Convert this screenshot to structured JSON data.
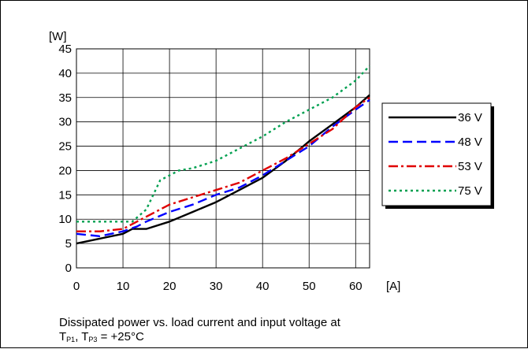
{
  "chart_data": {
    "type": "line",
    "xlabel": "[A]",
    "ylabel": "[W]",
    "xlim": [
      0,
      63
    ],
    "ylim": [
      0,
      45
    ],
    "x_ticks": [
      "0",
      "10",
      "20",
      "30",
      "40",
      "50",
      "60"
    ],
    "y_ticks": [
      "0",
      "5",
      "10",
      "15",
      "20",
      "25",
      "30",
      "35",
      "40",
      "45"
    ],
    "grid": true,
    "legend_position": "right",
    "series": [
      {
        "name": "36 V",
        "color": "#000000",
        "style": "solid",
        "x": [
          0,
          5,
          10,
          12,
          15,
          20,
          25,
          30,
          35,
          40,
          45,
          50,
          55,
          60,
          63
        ],
        "y": [
          5,
          6,
          7,
          8,
          8,
          9.5,
          11.5,
          13.5,
          16,
          18.5,
          22,
          26,
          29.5,
          33,
          35.5
        ]
      },
      {
        "name": "48 V",
        "color": "#0000ff",
        "style": "dash",
        "x": [
          0,
          5,
          10,
          13,
          15,
          20,
          25,
          30,
          35,
          40,
          45,
          50,
          55,
          60,
          63
        ],
        "y": [
          7,
          6.5,
          7.5,
          8.5,
          9.5,
          11.5,
          13,
          15,
          16.5,
          19,
          22,
          25,
          29,
          32.5,
          34.5
        ]
      },
      {
        "name": "53 V",
        "color": "#e00000",
        "style": "dashdot",
        "x": [
          0,
          5,
          10,
          13,
          15,
          20,
          25,
          30,
          35,
          40,
          45,
          50,
          55,
          60,
          63
        ],
        "y": [
          7.5,
          7.5,
          8,
          9.5,
          10.5,
          13,
          14.5,
          16,
          17.5,
          20,
          22.5,
          25.5,
          28.5,
          33,
          35
        ]
      },
      {
        "name": "75 V",
        "color": "#00a050",
        "style": "dot",
        "x": [
          0,
          5,
          10,
          12,
          15,
          18,
          22,
          25,
          30,
          35,
          40,
          45,
          50,
          55,
          60,
          63
        ],
        "y": [
          9.5,
          9.5,
          9.5,
          9.5,
          12,
          18,
          20,
          20.5,
          22,
          24.5,
          27,
          30,
          32.5,
          35,
          38.5,
          41.5
        ]
      }
    ]
  },
  "caption": {
    "line1": "Dissipated power vs. load current and input voltage at",
    "t": "T",
    "sub1": "P1",
    "sep": ", T",
    "sub2": "P3",
    "value": " = +25°C"
  }
}
